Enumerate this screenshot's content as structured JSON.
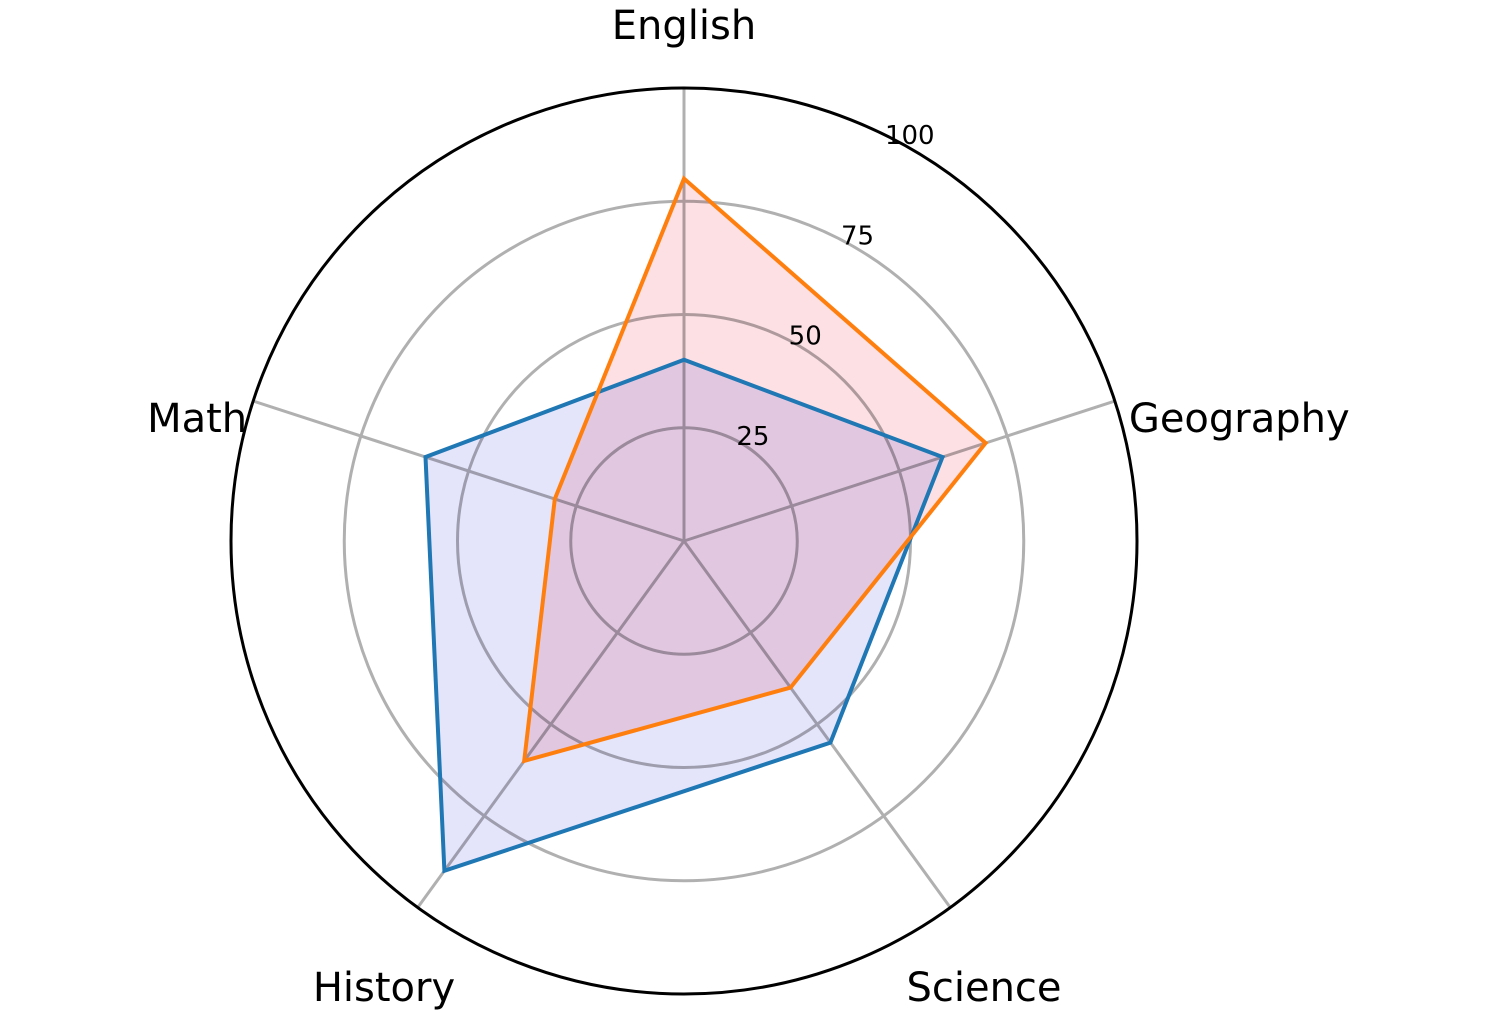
{
  "chart_data": {
    "type": "radar",
    "categories": [
      "English",
      "Geography",
      "Science",
      "History",
      "Math"
    ],
    "series": [
      {
        "values": [
          40,
          60,
          55,
          90,
          60
        ],
        "line_color": "#1f77b4",
        "fill_color": "#e4e4fb"
      },
      {
        "values": [
          80,
          70,
          40,
          60,
          30
        ],
        "line_color": "#ff7f0e",
        "fill_color": "#fce0e4"
      }
    ],
    "r_ticks": [
      25,
      50,
      75,
      100
    ],
    "r_tick_labels": [
      "25",
      "50",
      "75",
      "100"
    ],
    "rlim": [
      0,
      100
    ],
    "grid": true,
    "legend": false,
    "grid_color": "#b0b0b0",
    "frame_color": "#000000"
  }
}
